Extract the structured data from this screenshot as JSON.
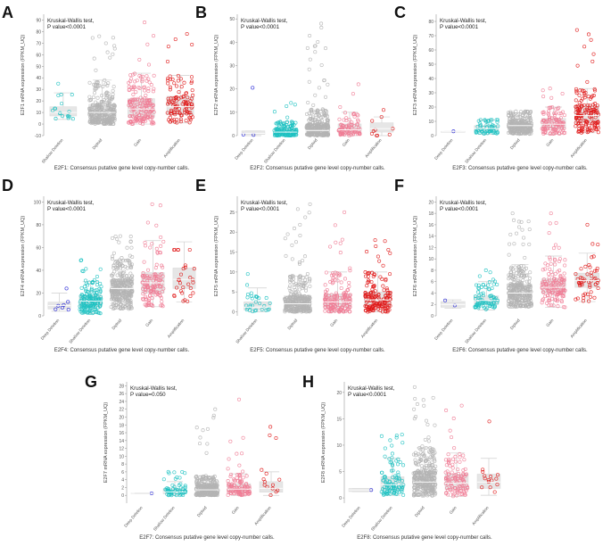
{
  "figure": {
    "groups_all": [
      "Deep Deletion",
      "Shallow Deletion",
      "Diploid",
      "Gain",
      "Amplification"
    ],
    "group_colors": {
      "Deep Deletion": "#1f1fd6",
      "Shallow Deletion": "#1fc2c2",
      "Diploid": "#b4b4b4",
      "Gain": "#f07d96",
      "Amplification": "#e01818"
    },
    "box_color": "#e6e6e6",
    "median_color": "#ffffff"
  },
  "chart_data": [
    {
      "type": "scatter",
      "panel": "A",
      "test_label": "Kruskal-Wallis test,",
      "p_label": "P value<0.0001",
      "ylabel": "E2F1 mRNA expression (FPKM_UQ)",
      "caption": "E2F1: Consensus putative gene level copy-number calls.",
      "ylim": [
        -10,
        95
      ],
      "yticks": [
        -10,
        0,
        10,
        20,
        30,
        40,
        50,
        60,
        70,
        80,
        90
      ],
      "groups": [
        {
          "name": "Shallow Deletion",
          "q1": 7,
          "median": 10,
          "q3": 15,
          "whisker_low": 4,
          "whisker_high": 27,
          "n": 18,
          "max": 35
        },
        {
          "name": "Diploid",
          "q1": 4,
          "median": 10,
          "q3": 17,
          "whisker_low": 0,
          "whisker_high": 38,
          "n": 300,
          "max": 76
        },
        {
          "name": "Gain",
          "q1": 6,
          "median": 13,
          "q3": 22,
          "whisker_low": 0,
          "whisker_high": 44,
          "n": 180,
          "max": 88
        },
        {
          "name": "Amplification",
          "q1": 8,
          "median": 15,
          "q3": 24,
          "whisker_low": 1,
          "whisker_high": 42,
          "n": 110,
          "max": 78
        }
      ]
    },
    {
      "type": "scatter",
      "panel": "B",
      "test_label": "Kruskal-Wallis test,",
      "p_label": "P value<0.0001",
      "ylabel": "E2F2 mRNA expression (FPKM_UQ)",
      "caption": "E2F2: Consensus putative gene level copy-number calls.",
      "ylim": [
        0,
        52
      ],
      "yticks": [
        0,
        10,
        20,
        30,
        40,
        50
      ],
      "groups": [
        {
          "name": "Deep Deletion",
          "q1": 0.5,
          "median": 1,
          "q3": 2,
          "whisker_low": 0,
          "whisker_high": 2,
          "n": 3,
          "max": 20.5
        },
        {
          "name": "Shallow Deletion",
          "q1": 0.5,
          "median": 1.5,
          "q3": 3,
          "whisker_low": 0,
          "whisker_high": 6,
          "n": 140,
          "max": 14
        },
        {
          "name": "Diploid",
          "q1": 0.8,
          "median": 2.2,
          "q3": 5,
          "whisker_low": 0,
          "whisker_high": 11,
          "n": 300,
          "max": 48
        },
        {
          "name": "Gain",
          "q1": 1,
          "median": 2.5,
          "q3": 5,
          "whisker_low": 0,
          "whisker_high": 10,
          "n": 90,
          "max": 22
        },
        {
          "name": "Amplification",
          "q1": 1.5,
          "median": 3,
          "q3": 5.5,
          "whisker_low": 0,
          "whisker_high": 8,
          "n": 10,
          "max": 11
        }
      ]
    },
    {
      "type": "scatter",
      "panel": "C",
      "test_label": "Kruskal-Wallis test,",
      "p_label": "P value<0.0001",
      "ylabel": "E2F3 mRNA expression (FPKM_UQ)",
      "caption": "E2F3: Consensus putative gene level copy-number calls.",
      "ylim": [
        0,
        85
      ],
      "yticks": [
        0,
        10,
        20,
        30,
        40,
        50,
        60,
        70,
        80
      ],
      "groups": [
        {
          "name": "Deep Deletion",
          "q1": 3,
          "median": 3,
          "q3": 3,
          "whisker_low": 3,
          "whisker_high": 3,
          "n": 1,
          "max": 3
        },
        {
          "name": "Shallow Deletion",
          "q1": 3,
          "median": 5,
          "q3": 7,
          "whisker_low": 1,
          "whisker_high": 11,
          "n": 60,
          "max": 11
        },
        {
          "name": "Diploid",
          "q1": 4,
          "median": 7,
          "q3": 10,
          "whisker_low": 1,
          "whisker_high": 16,
          "n": 260,
          "max": 17
        },
        {
          "name": "Gain",
          "q1": 5,
          "median": 8,
          "q3": 12,
          "whisker_low": 1,
          "whisker_high": 20,
          "n": 110,
          "max": 33
        },
        {
          "name": "Amplification",
          "q1": 9,
          "median": 14,
          "q3": 21,
          "whisker_low": 2,
          "whisker_high": 33,
          "n": 150,
          "max": 74
        }
      ]
    },
    {
      "type": "scatter",
      "panel": "D",
      "test_label": "Kruskal-Wallis test,",
      "p_label": "P value<0.0001",
      "ylabel": "E2F4 mRNA expression (FPKM_UQ)",
      "caption": "E2F4: Consensus putative gene level copy-number calls.",
      "ylim": [
        0,
        105
      ],
      "yticks": [
        0,
        20,
        40,
        60,
        80,
        100
      ],
      "groups": [
        {
          "name": "Deep Deletion",
          "q1": 6,
          "median": 9,
          "q3": 12,
          "whisker_low": 4,
          "whisker_high": 20,
          "n": 7,
          "max": 24
        },
        {
          "name": "Shallow Deletion",
          "q1": 8,
          "median": 13,
          "q3": 18,
          "whisker_low": 2,
          "whisker_high": 30,
          "n": 160,
          "max": 49
        },
        {
          "name": "Diploid",
          "q1": 17,
          "median": 24,
          "q3": 32,
          "whisker_low": 6,
          "whisker_high": 49,
          "n": 300,
          "max": 70
        },
        {
          "name": "Gain",
          "q1": 20,
          "median": 29,
          "q3": 38,
          "whisker_low": 8,
          "whisker_high": 66,
          "n": 130,
          "max": 98
        },
        {
          "name": "Amplification",
          "q1": 24,
          "median": 32,
          "q3": 42,
          "whisker_low": 12,
          "whisker_high": 65,
          "n": 30,
          "max": 58
        }
      ]
    },
    {
      "type": "scatter",
      "panel": "E",
      "test_label": "Kruskal-Wallis test,",
      "p_label": "P value<0.0001",
      "ylabel": "E2F5 mRNA expression (FPKM_UQ)",
      "caption": "E2F5: Consensus putative gene level copy-number calls.",
      "ylim": [
        -1,
        29
      ],
      "yticks": [
        0,
        5,
        10,
        15,
        20,
        25
      ],
      "groups": [
        {
          "name": "Shallow Deletion",
          "q1": 0.5,
          "median": 1.2,
          "q3": 2.5,
          "whisker_low": 0,
          "whisker_high": 6,
          "n": 30,
          "max": 9.5
        },
        {
          "name": "Diploid",
          "q1": 1,
          "median": 2,
          "q3": 4,
          "whisker_low": 0,
          "whisker_high": 9,
          "n": 300,
          "max": 27
        },
        {
          "name": "Gain",
          "q1": 1.2,
          "median": 2.5,
          "q3": 4.5,
          "whisker_low": 0,
          "whisker_high": 10,
          "n": 170,
          "max": 25
        },
        {
          "name": "Amplification",
          "q1": 1.5,
          "median": 3,
          "q3": 5,
          "whisker_low": 0,
          "whisker_high": 10,
          "n": 160,
          "max": 18
        }
      ]
    },
    {
      "type": "scatter",
      "panel": "F",
      "test_label": "Kruskal-Wallis test,",
      "p_label": "P value<0.0001",
      "ylabel": "E2F6 mRNA expression (FPKM_UQ)",
      "caption": "E2F6: Consensus putative gene level copy-number calls.",
      "ylim": [
        0,
        21
      ],
      "yticks": [
        0,
        2,
        4,
        6,
        8,
        10,
        12,
        14,
        16,
        18,
        20
      ],
      "groups": [
        {
          "name": "Deep Deletion",
          "q1": 1.5,
          "median": 2,
          "q3": 2.5,
          "whisker_low": 1.3,
          "whisker_high": 2.8,
          "n": 2,
          "max": 2.7
        },
        {
          "name": "Shallow Deletion",
          "q1": 2,
          "median": 2.7,
          "q3": 3.5,
          "whisker_low": 1,
          "whisker_high": 6,
          "n": 80,
          "max": 8
        },
        {
          "name": "Diploid",
          "q1": 3,
          "median": 4,
          "q3": 5.5,
          "whisker_low": 1.5,
          "whisker_high": 9,
          "n": 300,
          "max": 18
        },
        {
          "name": "Gain",
          "q1": 4,
          "median": 5,
          "q3": 6.5,
          "whisker_low": 1.5,
          "whisker_high": 10.5,
          "n": 140,
          "max": 18
        },
        {
          "name": "Amplification",
          "q1": 5,
          "median": 6.2,
          "q3": 7.5,
          "whisker_low": 2.5,
          "whisker_high": 11,
          "n": 50,
          "max": 16
        }
      ]
    },
    {
      "type": "scatter",
      "panel": "G",
      "test_label": "Kruskal-Wallis test,",
      "p_label": "P value=0.050",
      "ylabel": "E2F7 mRNA expression (FPKM_UQ)",
      "caption": "E2F7: Consensus putative gene level copy-number calls.",
      "ylim": [
        -2,
        29
      ],
      "yticks": [
        0,
        2,
        4,
        6,
        8,
        10,
        12,
        14,
        16,
        18,
        20,
        22,
        24,
        26,
        28
      ],
      "groups": [
        {
          "name": "Deep Deletion",
          "q1": 0.4,
          "median": 0.5,
          "q3": 0.6,
          "whisker_low": 0.4,
          "whisker_high": 0.6,
          "n": 1,
          "max": 0.5
        },
        {
          "name": "Shallow Deletion",
          "q1": 0.4,
          "median": 0.9,
          "q3": 1.7,
          "whisker_low": 0,
          "whisker_high": 3.5,
          "n": 60,
          "max": 6
        },
        {
          "name": "Diploid",
          "q1": 0.6,
          "median": 1.4,
          "q3": 2.8,
          "whisker_low": 0,
          "whisker_high": 5,
          "n": 300,
          "max": 22
        },
        {
          "name": "Gain",
          "q1": 0.7,
          "median": 1.6,
          "q3": 3,
          "whisker_low": 0,
          "whisker_high": 5.5,
          "n": 110,
          "max": 24.5
        },
        {
          "name": "Amplification",
          "q1": 0.8,
          "median": 1.8,
          "q3": 3.5,
          "whisker_low": 0,
          "whisker_high": 6,
          "n": 15,
          "max": 17.5
        }
      ]
    },
    {
      "type": "scatter",
      "panel": "H",
      "test_label": "Kruskal-Wallis test,",
      "p_label": "P value<0.0001",
      "ylabel": "E2F8 mRNA expression (FPKM_UQ)",
      "caption": "E2F8: Consensus putative gene level copy-number calls.",
      "ylim": [
        -1,
        22
      ],
      "yticks": [
        0,
        5,
        10,
        15,
        20
      ],
      "groups": [
        {
          "name": "Deep Deletion",
          "q1": 1.2,
          "median": 1.5,
          "q3": 1.8,
          "whisker_low": 1.2,
          "whisker_high": 1.8,
          "n": 1,
          "max": 1.5
        },
        {
          "name": "Shallow Deletion",
          "q1": 1.5,
          "median": 2.5,
          "q3": 4,
          "whisker_low": 0.5,
          "whisker_high": 7.5,
          "n": 100,
          "max": 12
        },
        {
          "name": "Diploid",
          "q1": 1.8,
          "median": 3,
          "q3": 5,
          "whisker_low": 0.4,
          "whisker_high": 9.5,
          "n": 300,
          "max": 21
        },
        {
          "name": "Gain",
          "q1": 1.6,
          "median": 2.8,
          "q3": 4.5,
          "whisker_low": 0.3,
          "whisker_high": 8.5,
          "n": 110,
          "max": 17.5
        },
        {
          "name": "Amplification",
          "q1": 1.8,
          "median": 3,
          "q3": 4.5,
          "whisker_low": 0.5,
          "whisker_high": 7.5,
          "n": 15,
          "max": 14.5
        }
      ]
    }
  ]
}
